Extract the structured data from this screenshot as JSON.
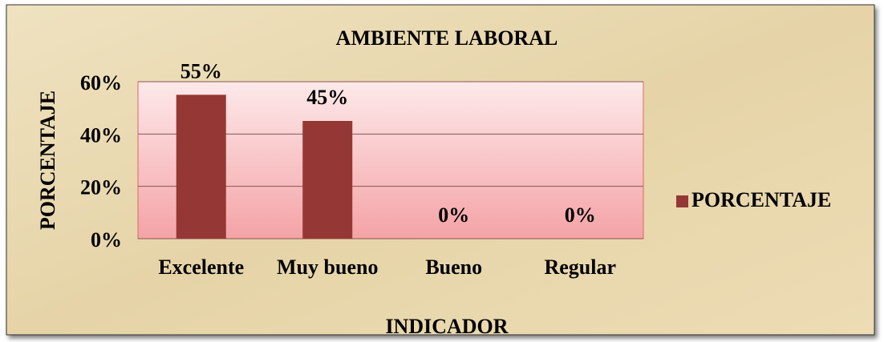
{
  "chart_data": {
    "type": "bar",
    "title": "AMBIENTE LABORAL",
    "x_label": "INDICADOR",
    "y_label": "PORCENTAJE",
    "categories": [
      "Excelente",
      "Muy bueno",
      "Bueno",
      "Regular"
    ],
    "series": [
      {
        "name": "PORCENTAJE",
        "color": "#953735",
        "values": [
          55,
          45,
          0,
          0
        ],
        "value_labels": [
          "55%",
          "45%",
          "0%",
          "0%"
        ]
      }
    ],
    "ylim": [
      0,
      60
    ],
    "yticks": [
      {
        "value": 0,
        "label": "0%"
      },
      {
        "value": 20,
        "label": "20%"
      },
      {
        "value": 40,
        "label": "40%"
      },
      {
        "value": 60,
        "label": "60%"
      }
    ],
    "grid": true,
    "legend": "right"
  }
}
